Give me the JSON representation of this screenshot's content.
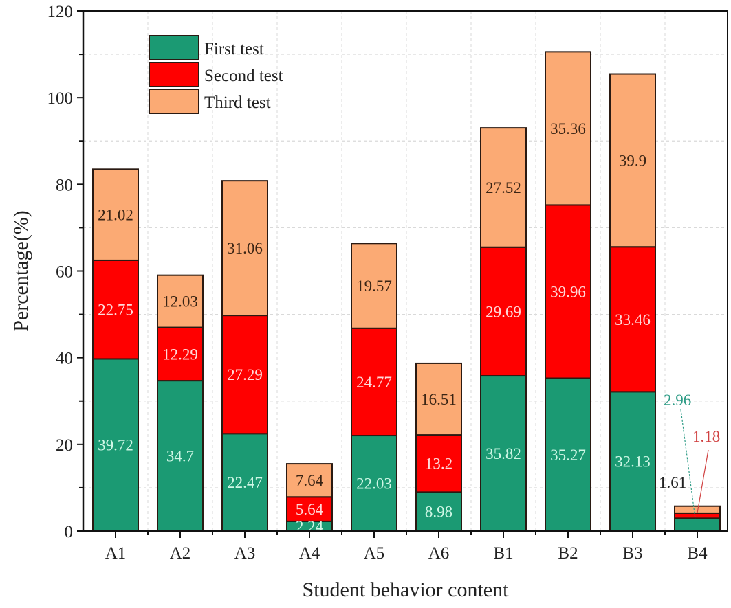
{
  "chart_data": {
    "type": "bar",
    "stacked": true,
    "title": "",
    "xlabel": "Student behavior content",
    "ylabel": "Percentage(%)",
    "ylim": [
      0,
      120
    ],
    "yticks": [
      0,
      20,
      40,
      60,
      80,
      100,
      120
    ],
    "ytick_labels": [
      "0",
      "20",
      "40",
      "60",
      "80",
      "100",
      "120"
    ],
    "grid": true,
    "legend_position": "top-left",
    "categories": [
      "A1",
      "A2",
      "A3",
      "A4",
      "A5",
      "A6",
      "B1",
      "B2",
      "B3",
      "B4"
    ],
    "series": [
      {
        "name": "First test",
        "color": "#1B9A73",
        "label_color": "#CFF7E6",
        "values": [
          39.72,
          34.7,
          22.47,
          2.24,
          22.03,
          8.98,
          35.82,
          35.27,
          32.13,
          2.96
        ],
        "labels": [
          "39.72",
          "34.7",
          "22.47",
          "2.24",
          "22.03",
          "8.98",
          "35.82",
          "35.27",
          "32.13",
          "2.96"
        ]
      },
      {
        "name": "Second test",
        "color": "#FF0000",
        "label_color": "#FFD9D9",
        "values": [
          22.75,
          12.29,
          27.29,
          5.64,
          24.77,
          13.2,
          29.69,
          39.96,
          33.46,
          1.18
        ],
        "labels": [
          "22.75",
          "12.29",
          "27.29",
          "5.64",
          "24.77",
          "13.2",
          "29.69",
          "39.96",
          "33.46",
          "1.18"
        ]
      },
      {
        "name": "Third test",
        "color": "#FBAA74",
        "label_color": "#3A2414",
        "values": [
          21.02,
          12.03,
          31.06,
          7.64,
          19.57,
          16.51,
          27.52,
          35.36,
          39.9,
          1.61
        ],
        "labels": [
          "21.02",
          "12.03",
          "31.06",
          "7.64",
          "19.57",
          "16.51",
          "27.52",
          "35.36",
          "39.9",
          "1.61"
        ]
      }
    ],
    "callouts": {
      "category": "B4",
      "first_color": "#2E9C86",
      "second_color": "#D04040",
      "third_color": "#222222"
    }
  }
}
